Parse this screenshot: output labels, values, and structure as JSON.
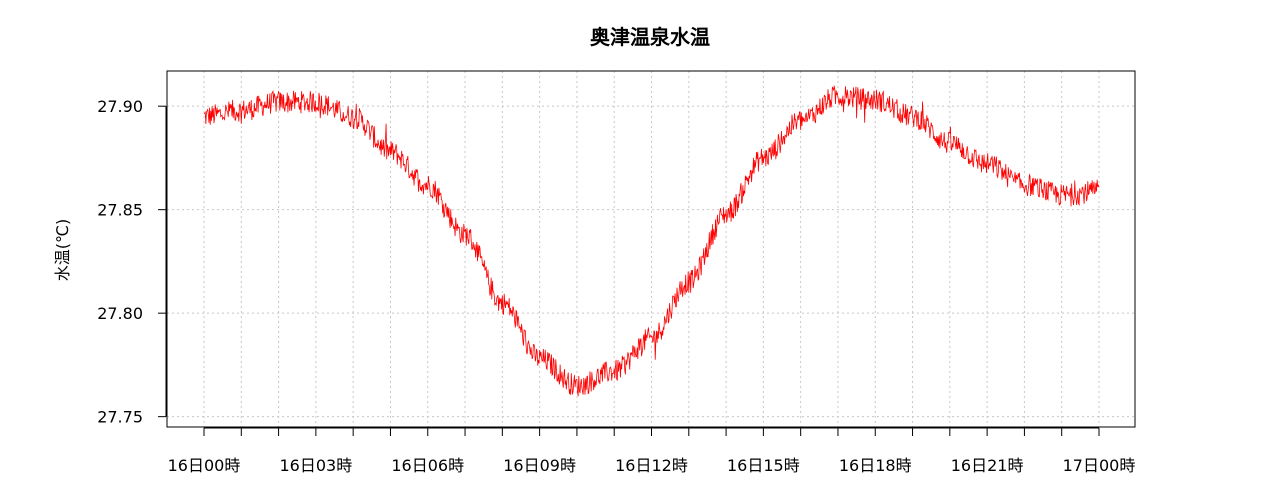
{
  "chart_data": {
    "type": "line",
    "title": "奥津温泉水温",
    "xlabel": "",
    "ylabel": "水温(℃)",
    "xlim": [
      "16日00時",
      "17日00時"
    ],
    "ylim": [
      27.745,
      27.917
    ],
    "x_tick_labels": [
      "16日00時",
      "16日03時",
      "16日06時",
      "16日09時",
      "16日12時",
      "16日15時",
      "16日18時",
      "16日21時",
      "17日00時"
    ],
    "y_ticks": [
      27.75,
      27.8,
      27.85,
      27.9
    ],
    "y_tick_labels": [
      "27.75",
      "27.80",
      "27.85",
      "27.90"
    ],
    "grid": true,
    "line_color": "#ff0000",
    "series": [
      {
        "x": [
          "16日00時",
          "16日01時",
          "16日02時",
          "16日03時",
          "16日04時",
          "16日05時",
          "16日06時",
          "16日07時",
          "16日08時",
          "16日09時",
          "16日10時",
          "16日11時",
          "16日12時",
          "16日13時",
          "16日14時",
          "16日15時",
          "16日16時",
          "16日17時",
          "16日18時",
          "16日19時",
          "16日20時",
          "16日21時",
          "16日22時",
          "16日23時",
          "17日00時"
        ],
        "values": [
          27.895,
          27.898,
          27.902,
          27.902,
          27.895,
          27.878,
          27.862,
          27.838,
          27.805,
          27.778,
          27.765,
          27.772,
          27.788,
          27.815,
          27.848,
          27.875,
          27.893,
          27.905,
          27.903,
          27.895,
          27.882,
          27.872,
          27.862,
          27.857,
          27.859
        ]
      }
    ]
  }
}
